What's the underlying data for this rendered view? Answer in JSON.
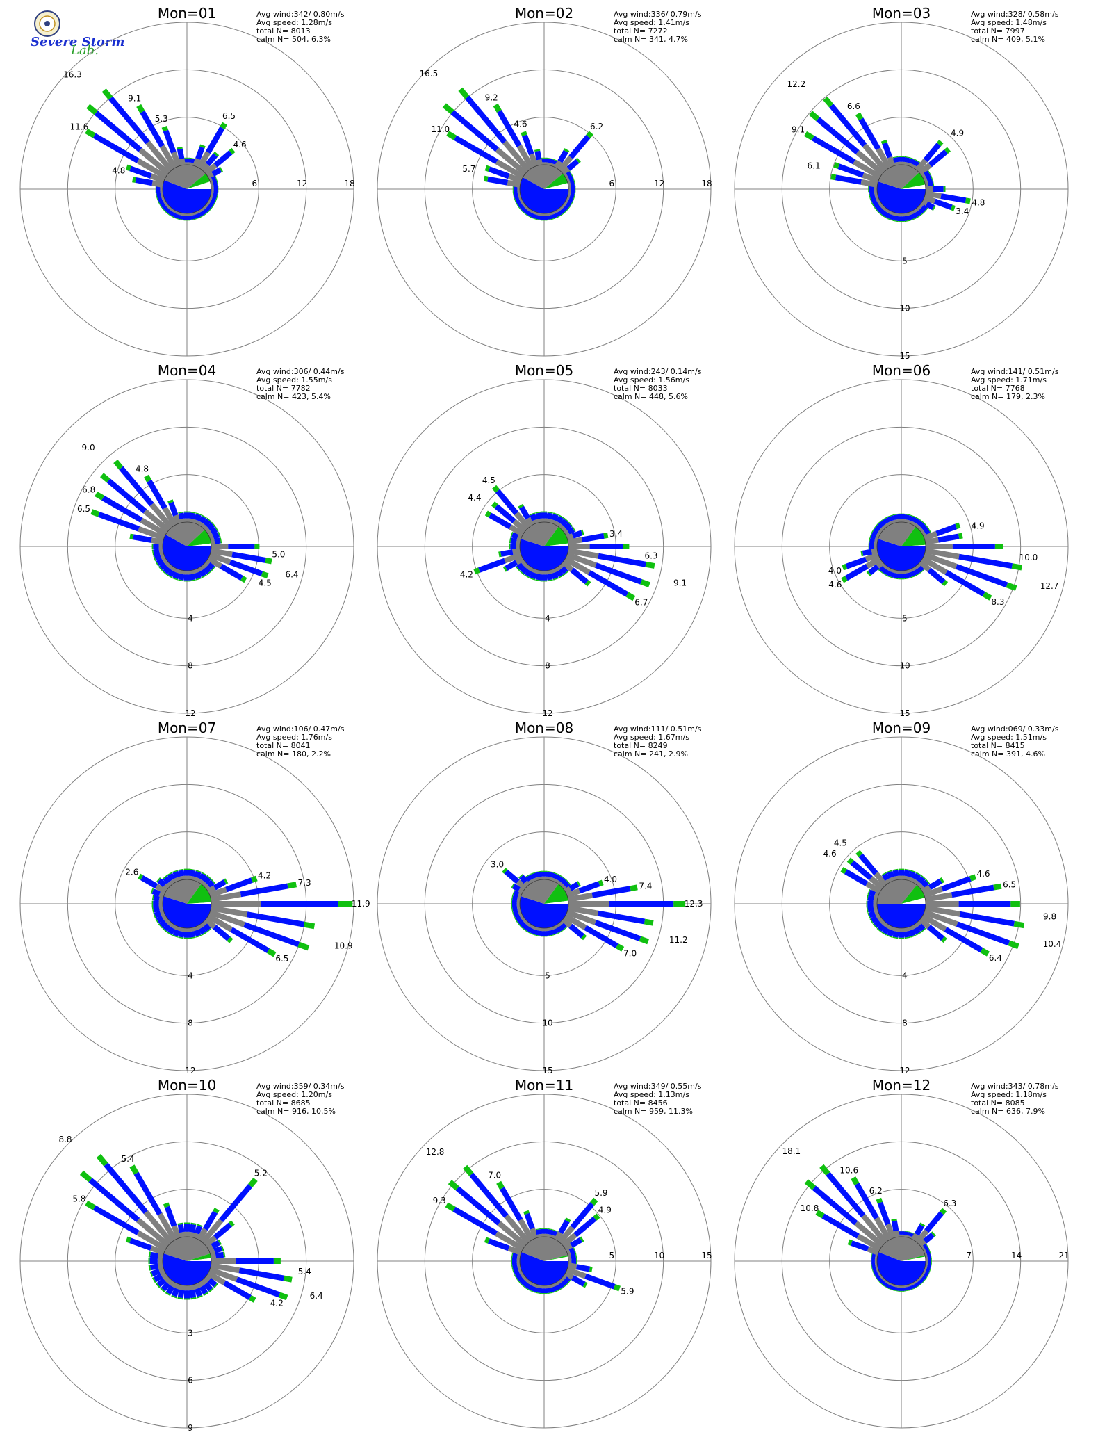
{
  "logo": {
    "line1": "Severe Storm",
    "line2": "Lab."
  },
  "colors": {
    "blue": "#0010ff",
    "green": "#10c010",
    "gray": "#808080",
    "grid": "#808080"
  },
  "chart_data": [
    {
      "type": "wind_rose",
      "title": "Mon=01",
      "info": [
        "Avg wind:342/ 0.80m/s",
        "Avg speed: 1.28m/s",
        "total N=      8013",
        "calm N=    504,   6.3%"
      ],
      "rings": [
        "6",
        "12",
        "18"
      ],
      "ring_axis": "east",
      "rmax": 18,
      "peaks": [
        {
          "dir": 315,
          "value": 16.3
        },
        {
          "dir": 300,
          "value": 11.6
        },
        {
          "dir": 330,
          "value": 9.1
        },
        {
          "dir": 340,
          "value": 5.3
        },
        {
          "dir": 30,
          "value": 6.5
        },
        {
          "dir": 50,
          "value": 4.6
        },
        {
          "dir": 285,
          "value": 4.8
        }
      ],
      "pie": {
        "blue": 0.56,
        "gray": 0.33,
        "green": 0.06
      }
    },
    {
      "type": "wind_rose",
      "title": "Mon=02",
      "info": [
        "Avg wind:336/ 0.79m/s",
        "Avg speed: 1.41m/s",
        "total N=      7272",
        "calm N=    341,   4.7%"
      ],
      "rings": [
        "6",
        "12",
        "18"
      ],
      "ring_axis": "east",
      "rmax": 18,
      "peaks": [
        {
          "dir": 315,
          "value": 16.5
        },
        {
          "dir": 300,
          "value": 11.0
        },
        {
          "dir": 330,
          "value": 9.2
        },
        {
          "dir": 340,
          "value": 4.6
        },
        {
          "dir": 285,
          "value": 5.7
        },
        {
          "dir": 40,
          "value": 6.2
        }
      ],
      "pie": {
        "blue": 0.58,
        "gray": 0.31,
        "green": 0.07
      }
    },
    {
      "type": "wind_rose",
      "title": "Mon=03",
      "info": [
        "Avg wind:328/ 0.58m/s",
        "Avg speed: 1.48m/s",
        "total N=      7997",
        "calm N=    409,   5.1%"
      ],
      "rings": [
        "5",
        "10",
        "15"
      ],
      "ring_axis": "south",
      "rmax": 15,
      "peaks": [
        {
          "dir": 315,
          "value": 12.2
        },
        {
          "dir": 300,
          "value": 9.1
        },
        {
          "dir": 330,
          "value": 6.6
        },
        {
          "dir": 285,
          "value": 6.1
        },
        {
          "dir": 45,
          "value": 4.9
        },
        {
          "dir": 100,
          "value": 4.8
        },
        {
          "dir": 110,
          "value": 3.4
        }
      ],
      "pie": {
        "blue": 0.55,
        "gray": 0.33,
        "green": 0.09
      }
    },
    {
      "type": "wind_rose",
      "title": "Mon=04",
      "info": [
        "Avg wind:306/ 0.44m/s",
        "Avg speed: 1.55m/s",
        "total N=      7782",
        "calm N=    423,   5.4%"
      ],
      "rings": [
        "4",
        "8",
        "12"
      ],
      "ring_axis": "south",
      "rmax": 12,
      "peaks": [
        {
          "dir": 315,
          "value": 9.0
        },
        {
          "dir": 300,
          "value": 6.8
        },
        {
          "dir": 290,
          "value": 6.5
        },
        {
          "dir": 330,
          "value": 4.8
        },
        {
          "dir": 95,
          "value": 5.0
        },
        {
          "dir": 105,
          "value": 6.4
        },
        {
          "dir": 115,
          "value": 4.5
        }
      ],
      "pie": {
        "blue": 0.58,
        "gray": 0.3,
        "green": 0.1
      }
    },
    {
      "type": "wind_rose",
      "title": "Mon=05",
      "info": [
        "Avg wind:243/ 0.14m/s",
        "Avg speed: 1.56m/s",
        "total N=      8033",
        "calm N=    448,   5.6%"
      ],
      "rings": [
        "4",
        "8",
        "12"
      ],
      "ring_axis": "south",
      "rmax": 12,
      "peaks": [
        {
          "dir": 95,
          "value": 6.3
        },
        {
          "dir": 105,
          "value": 9.1
        },
        {
          "dir": 120,
          "value": 6.7
        },
        {
          "dir": 320,
          "value": 4.5
        },
        {
          "dir": 305,
          "value": 4.4
        },
        {
          "dir": 250,
          "value": 4.2
        },
        {
          "dir": 80,
          "value": 3.4
        }
      ],
      "pie": {
        "blue": 0.55,
        "gray": 0.3,
        "green": 0.13
      }
    },
    {
      "type": "wind_rose",
      "title": "Mon=06",
      "info": [
        "Avg wind:141/ 0.51m/s",
        "Avg speed: 1.71m/s",
        "total N=      7768",
        "calm N=    179,   2.3%"
      ],
      "rings": [
        "5",
        "10",
        "15"
      ],
      "ring_axis": "south",
      "rmax": 15,
      "peaks": [
        {
          "dir": 95,
          "value": 10.0
        },
        {
          "dir": 105,
          "value": 12.7
        },
        {
          "dir": 120,
          "value": 8.3
        },
        {
          "dir": 75,
          "value": 4.9
        },
        {
          "dir": 250,
          "value": 4.0
        },
        {
          "dir": 240,
          "value": 4.6
        }
      ],
      "pie": {
        "blue": 0.55,
        "gray": 0.3,
        "green": 0.14
      }
    },
    {
      "type": "wind_rose",
      "title": "Mon=07",
      "info": [
        "Avg wind:106/ 0.47m/s",
        "Avg speed: 1.76m/s",
        "total N=      8041",
        "calm N=    180,   2.2%"
      ],
      "rings": [
        "4",
        "8",
        "12"
      ],
      "ring_axis": "south",
      "rmax": 12,
      "peaks": [
        {
          "dir": 90,
          "value": 11.9
        },
        {
          "dir": 105,
          "value": 10.9
        },
        {
          "dir": 80,
          "value": 7.3
        },
        {
          "dir": 120,
          "value": 6.5
        },
        {
          "dir": 70,
          "value": 4.2
        },
        {
          "dir": 300,
          "value": 2.6
        }
      ],
      "pie": {
        "blue": 0.55,
        "gray": 0.3,
        "green": 0.14
      }
    },
    {
      "type": "wind_rose",
      "title": "Mon=08",
      "info": [
        "Avg wind:111/ 0.51m/s",
        "Avg speed: 1.67m/s",
        "total N=      8249",
        "calm N=    241,   2.9%"
      ],
      "rings": [
        "5",
        "10",
        "15"
      ],
      "ring_axis": "south",
      "rmax": 15,
      "peaks": [
        {
          "dir": 90,
          "value": 12.3
        },
        {
          "dir": 105,
          "value": 11.2
        },
        {
          "dir": 80,
          "value": 7.4
        },
        {
          "dir": 120,
          "value": 7.0
        },
        {
          "dir": 70,
          "value": 4.0
        },
        {
          "dir": 310,
          "value": 3.0
        }
      ],
      "pie": {
        "blue": 0.55,
        "gray": 0.3,
        "green": 0.13
      }
    },
    {
      "type": "wind_rose",
      "title": "Mon=09",
      "info": [
        "Avg wind:069/ 0.33m/s",
        "Avg speed: 1.51m/s",
        "total N=      8415",
        "calm N=    391,   4.6%"
      ],
      "rings": [
        "4",
        "8",
        "12"
      ],
      "ring_axis": "south",
      "rmax": 12,
      "peaks": [
        {
          "dir": 95,
          "value": 9.8
        },
        {
          "dir": 105,
          "value": 10.4
        },
        {
          "dir": 120,
          "value": 6.4
        },
        {
          "dir": 80,
          "value": 6.5
        },
        {
          "dir": 315,
          "value": 4.5
        },
        {
          "dir": 305,
          "value": 4.6
        },
        {
          "dir": 70,
          "value": 4.6
        }
      ],
      "pie": {
        "blue": 0.5,
        "gray": 0.36,
        "green": 0.1
      }
    },
    {
      "type": "wind_rose",
      "title": "Mon=10",
      "info": [
        "Avg wind:359/ 0.34m/s",
        "Avg speed: 1.20m/s",
        "total N=      8685",
        "calm N=    916,  10.5%"
      ],
      "rings": [
        "3",
        "6",
        "9"
      ],
      "ring_axis": "south",
      "rmax": 9,
      "peaks": [
        {
          "dir": 315,
          "value": 8.8
        },
        {
          "dir": 300,
          "value": 5.8
        },
        {
          "dir": 330,
          "value": 5.4
        },
        {
          "dir": 40,
          "value": 5.2
        },
        {
          "dir": 95,
          "value": 5.4
        },
        {
          "dir": 105,
          "value": 6.4
        },
        {
          "dir": 115,
          "value": 4.2
        }
      ],
      "pie": {
        "blue": 0.55,
        "gray": 0.4,
        "green": 0.03
      }
    },
    {
      "type": "wind_rose",
      "title": "Mon=11",
      "info": [
        "Avg wind:349/ 0.55m/s",
        "Avg speed: 1.13m/s",
        "total N=      8456",
        "calm N=    959,  11.3%"
      ],
      "rings": [
        "5",
        "10",
        "15"
      ],
      "ring_axis": "east",
      "rmax": 15,
      "peaks": [
        {
          "dir": 315,
          "value": 12.8
        },
        {
          "dir": 300,
          "value": 9.3
        },
        {
          "dir": 330,
          "value": 7.0
        },
        {
          "dir": 40,
          "value": 5.9
        },
        {
          "dir": 50,
          "value": 4.9
        },
        {
          "dir": 110,
          "value": 5.9
        }
      ],
      "pie": {
        "blue": 0.56,
        "gray": 0.4,
        "green": 0.01
      }
    },
    {
      "type": "wind_rose",
      "title": "Mon=12",
      "info": [
        "Avg wind:343/ 0.78m/s",
        "Avg speed: 1.18m/s",
        "total N=      8085",
        "calm N=    636,   7.9%"
      ],
      "rings": [
        "7",
        "14",
        "21"
      ],
      "ring_axis": "east",
      "rmax": 21,
      "peaks": [
        {
          "dir": 315,
          "value": 18.1
        },
        {
          "dir": 330,
          "value": 10.6
        },
        {
          "dir": 300,
          "value": 10.8
        },
        {
          "dir": 340,
          "value": 6.2
        },
        {
          "dir": 40,
          "value": 6.3
        }
      ],
      "pie": {
        "blue": 0.56,
        "gray": 0.4,
        "green": 0.01
      }
    }
  ]
}
